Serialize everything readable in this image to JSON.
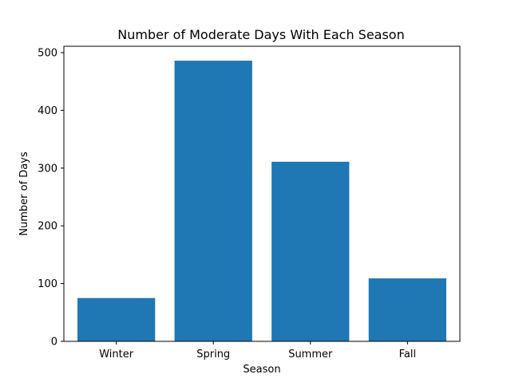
{
  "chart_data": {
    "type": "bar",
    "title": "Number of Moderate Days With Each Season",
    "xlabel": "Season",
    "ylabel": "Number of Days",
    "categories": [
      "Winter",
      "Spring",
      "Summer",
      "Fall"
    ],
    "values": [
      75,
      486,
      311,
      109
    ],
    "ylim": [
      0,
      511
    ],
    "yticks": [
      0,
      100,
      200,
      300,
      400,
      500
    ],
    "ytick_labels": [
      "0",
      "100",
      "200",
      "300",
      "400",
      "500"
    ],
    "grid": false,
    "legend": "none",
    "bar_color": "#1f77b4"
  }
}
